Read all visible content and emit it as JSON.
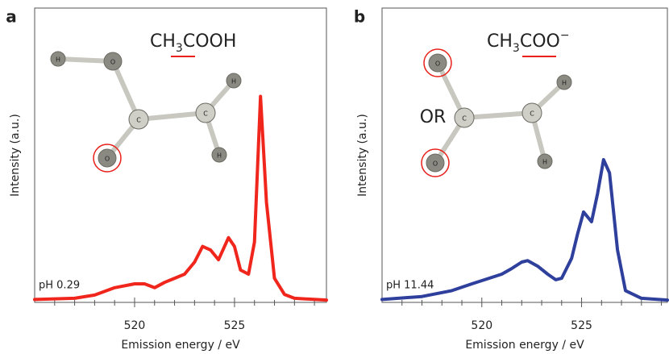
{
  "chart_data": [
    {
      "type": "line",
      "panel_label": "a",
      "xlabel": "Emission energy / eV",
      "ylabel": "Intensity (a.u.)",
      "annotation": "pH 0.29",
      "formula": [
        "CH",
        "3",
        "COOH"
      ],
      "atoms": [
        "H",
        "O",
        "C",
        "C",
        "H",
        "O",
        "H"
      ],
      "color": "#f0261d",
      "x": [
        515,
        517,
        518,
        519,
        520,
        520.5,
        521,
        521.5,
        522,
        522.5,
        523,
        523.4,
        523.8,
        524.2,
        524.7,
        525.0,
        525.3,
        525.7,
        526.0,
        526.3,
        526.6,
        527,
        527.5,
        528,
        529.6
      ],
      "values": [
        0.01,
        0.014,
        0.025,
        0.05,
        0.063,
        0.063,
        0.05,
        0.068,
        0.082,
        0.096,
        0.137,
        0.19,
        0.178,
        0.145,
        0.22,
        0.19,
        0.11,
        0.096,
        0.205,
        0.7,
        0.34,
        0.082,
        0.027,
        0.014,
        0.008
      ],
      "xlim": [
        515,
        529.6
      ],
      "ylim": [
        0,
        1
      ],
      "xticks": [
        520,
        525
      ],
      "xminorticks": [
        516,
        517,
        518,
        519,
        521,
        522,
        523,
        524,
        526,
        527,
        528,
        529
      ]
    },
    {
      "type": "line",
      "panel_label": "b",
      "xlabel": "Emission energy / eV",
      "ylabel": "Intensity (a.u.)",
      "annotation": "pH 11.44",
      "formula": [
        "CH",
        "3",
        "COO",
        "−"
      ],
      "atoms": [
        "O",
        "C",
        "C",
        "H",
        "O",
        "H"
      ],
      "note": "OR",
      "color": "#2e3f9c",
      "x": [
        515,
        517,
        518.5,
        519.5,
        520,
        521,
        521.5,
        522,
        522.3,
        522.8,
        523.3,
        523.7,
        524,
        524.5,
        524.8,
        525.1,
        525.5,
        525.8,
        526.1,
        526.4,
        526.8,
        527.2,
        528,
        529.3
      ],
      "values": [
        0.01,
        0.02,
        0.04,
        0.063,
        0.074,
        0.096,
        0.115,
        0.137,
        0.142,
        0.123,
        0.096,
        0.077,
        0.082,
        0.15,
        0.233,
        0.307,
        0.274,
        0.37,
        0.485,
        0.44,
        0.178,
        0.04,
        0.014,
        0.008
      ],
      "xlim": [
        515,
        529.3
      ],
      "ylim": [
        0,
        1
      ],
      "xticks": [
        520,
        525
      ],
      "xminorticks": [
        516,
        517,
        518,
        519,
        521,
        522,
        523,
        524,
        526,
        527,
        528,
        529
      ]
    }
  ]
}
